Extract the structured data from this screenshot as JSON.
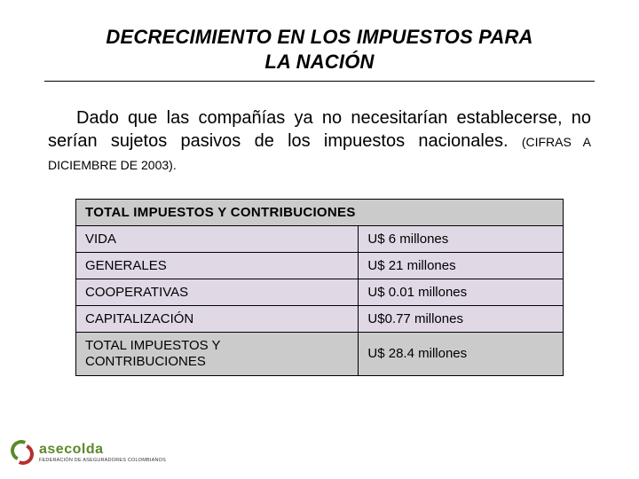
{
  "title": {
    "line1": "DECRECIMIENTO EN LOS IMPUESTOS PARA",
    "line2": "LA NACIÓN"
  },
  "paragraph": {
    "text": "Dado que las compañías ya no necesitarían establecerse, no serían sujetos pasivos de los impuestos nacionales.",
    "note": "(CIFRAS A DICIEMBRE DE 2003)."
  },
  "table": {
    "header": "TOTAL IMPUESTOS Y CONTRIBUCIONES",
    "header_bg": "#cbcbcb",
    "row_bg": "#e1d8e6",
    "border_color": "#000000",
    "rows": [
      {
        "label": "VIDA",
        "value": "U$ 6 millones"
      },
      {
        "label": "GENERALES",
        "value": "U$ 21 millones"
      },
      {
        "label": "COOPERATIVAS",
        "value": "U$ 0.01 millones"
      },
      {
        "label": "CAPITALIZACIÓN",
        "value": "U$0.77 millones"
      }
    ],
    "total": {
      "label_line1": "TOTAL IMPUESTOS Y",
      "label_line2": "CONTRIBUCIONES",
      "value": "U$ 28.4 millones"
    }
  },
  "footer": {
    "brand_name": "asecolda",
    "brand_sub": "FEDERACIÓN DE ASEGURADORES COLOMBIANOS",
    "logo_color_green": "#5a8a2a",
    "logo_color_red": "#b43030"
  },
  "colors": {
    "background": "#ffffff",
    "text": "#000000",
    "title_text": "#000000"
  },
  "fonts": {
    "title_size_pt": 17,
    "body_size_pt": 15,
    "table_size_pt": 11,
    "note_size_pt": 10
  }
}
